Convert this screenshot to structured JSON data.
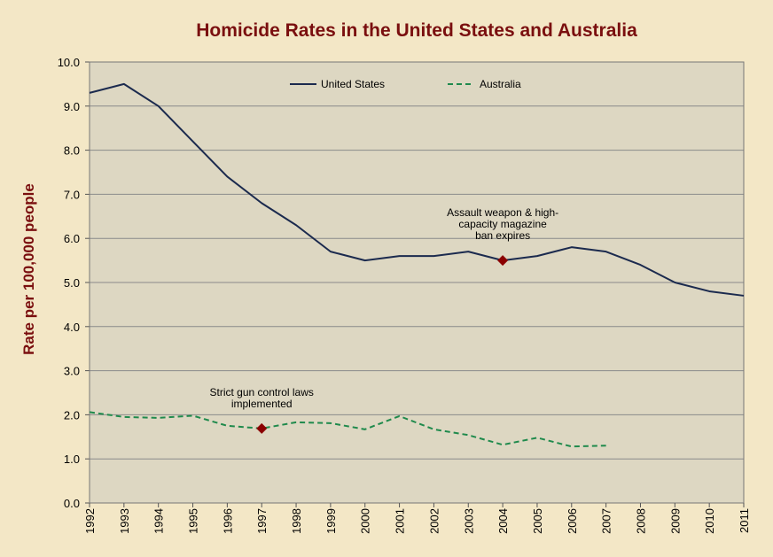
{
  "chart_data": {
    "type": "line",
    "title": "Homicide Rates in the United States and Australia",
    "xlabel": "",
    "ylabel": "Rate per 100,000 people",
    "ylim": [
      0,
      10
    ],
    "yticks": [
      "0.0",
      "1.0",
      "2.0",
      "3.0",
      "4.0",
      "5.0",
      "6.0",
      "7.0",
      "8.0",
      "9.0",
      "10.0"
    ],
    "x": [
      "1992",
      "1993",
      "1994",
      "1995",
      "1996",
      "1997",
      "1998",
      "1999",
      "2000",
      "2001",
      "2002",
      "2003",
      "2004",
      "2005",
      "2006",
      "2007",
      "2008",
      "2009",
      "2010",
      "2011"
    ],
    "series": [
      {
        "name": "United States",
        "color": "#1b2a4e",
        "style": "solid",
        "values": [
          9.3,
          9.5,
          9.0,
          8.2,
          7.4,
          6.8,
          6.3,
          5.7,
          5.5,
          5.6,
          5.6,
          5.7,
          5.5,
          5.6,
          5.8,
          5.7,
          5.4,
          5.0,
          4.8,
          4.7
        ]
      },
      {
        "name": "Australia",
        "color": "#1f8a4c",
        "style": "dashed",
        "values": [
          2.06,
          1.95,
          1.93,
          1.98,
          1.75,
          1.69,
          1.83,
          1.81,
          1.67,
          1.97,
          1.67,
          1.54,
          1.32,
          1.48,
          1.28,
          1.3,
          null,
          null,
          null,
          null
        ]
      }
    ],
    "legend_position": "top",
    "grid": true,
    "annotations": [
      {
        "x": "2004",
        "y": 5.5,
        "series": "United States",
        "marker_color": "#8b0000",
        "lines": [
          "Assault weapon & high-",
          "capacity magazine",
          "ban expires"
        ]
      },
      {
        "x": "1997",
        "y": 1.69,
        "series": "Australia",
        "marker_color": "#8b0000",
        "lines": [
          "Strict gun control laws",
          "implemented"
        ]
      }
    ],
    "colors": {
      "background": "#f3e7c6",
      "plot_area": "#ddd7c2",
      "grid": "#8a8a8a",
      "title": "#7a0f0f"
    }
  }
}
